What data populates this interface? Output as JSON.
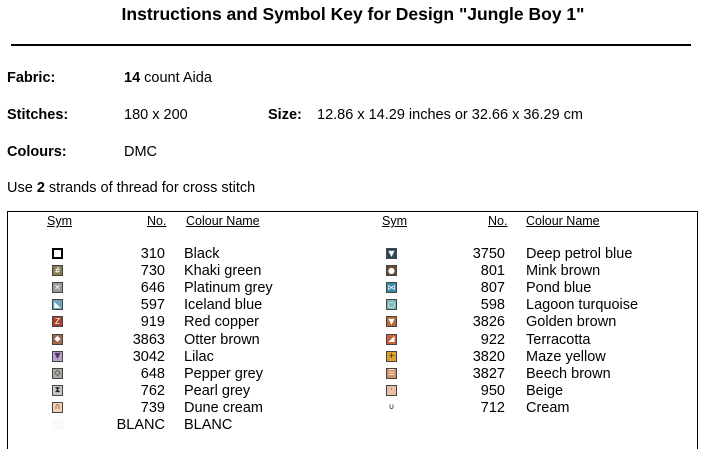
{
  "title": "Instructions and Symbol Key for Design \"Jungle Boy 1\"",
  "fabric": {
    "label": "Fabric:",
    "count": "14",
    "suffix": " count Aida"
  },
  "stitches": {
    "label": "Stitches:",
    "value": "180 x 200"
  },
  "size": {
    "label": "Size:",
    "value": "12.86 x 14.29 inches or 32.66 x 36.29 cm"
  },
  "colours": {
    "label": "Colours:",
    "value": "DMC"
  },
  "strands": {
    "prefix": "Use ",
    "count": "2",
    "suffix": " strands of thread for cross stitch"
  },
  "table": {
    "headers": {
      "sym": "Sym",
      "no": "No.",
      "name": "Colour Name"
    },
    "left": [
      {
        "glyph": "",
        "color": "#ffffff",
        "fg": "#000",
        "no": "310",
        "name": "Black"
      },
      {
        "glyph": "#",
        "color": "#8a7a55",
        "fg": "#fff",
        "no": "730",
        "name": "Khaki green"
      },
      {
        "glyph": "✕",
        "color": "#9a9a9a",
        "fg": "#fff",
        "no": "646",
        "name": "Platinum grey"
      },
      {
        "glyph": "◣",
        "color": "#6aa6b8",
        "fg": "#fff",
        "no": "597",
        "name": "Iceland blue"
      },
      {
        "glyph": "Z",
        "color": "#a4402a",
        "fg": "#fff",
        "no": "919",
        "name": "Red copper"
      },
      {
        "glyph": "◆",
        "color": "#a0694a",
        "fg": "#fff",
        "no": "3863",
        "name": "Otter brown"
      },
      {
        "glyph": "▼",
        "color": "#b8a0c8",
        "fg": "#4a3a60",
        "no": "3042",
        "name": "Lilac"
      },
      {
        "glyph": "◇",
        "color": "#a8a8a0",
        "fg": "#222",
        "no": "648",
        "name": "Pepper grey"
      },
      {
        "glyph": "⧗",
        "color": "#c8c8c8",
        "fg": "#222",
        "no": "762",
        "name": "Pearl grey"
      },
      {
        "glyph": "∩",
        "color": "#f2d2b0",
        "fg": "#6a4020",
        "no": "739",
        "name": "Dune cream"
      },
      {
        "glyph": "",
        "color": "#fafafa",
        "fg": "#000",
        "no": "BLANC",
        "name": "BLANC",
        "noborder": true
      }
    ],
    "right": [
      {
        "glyph": "▼",
        "color": "#2a4a5a",
        "fg": "#fff",
        "no": "3750",
        "name": "Deep petrol blue"
      },
      {
        "glyph": "●",
        "color": "#6a4a30",
        "fg": "#fff",
        "no": "801",
        "name": "Mink brown"
      },
      {
        "glyph": "⋈",
        "color": "#3a88a8",
        "fg": "#fff",
        "no": "807",
        "name": "Pond blue"
      },
      {
        "glyph": "○",
        "color": "#7ab8b8",
        "fg": "#fff",
        "no": "598",
        "name": "Lagoon turquoise"
      },
      {
        "glyph": "▼",
        "color": "#b86a30",
        "fg": "#fff",
        "no": "3826",
        "name": "Golden brown"
      },
      {
        "glyph": "◢",
        "color": "#c8603a",
        "fg": "#fff",
        "no": "922",
        "name": "Terracotta"
      },
      {
        "glyph": "+",
        "color": "#e0a030",
        "fg": "#222",
        "no": "3820",
        "name": "Maze yellow"
      },
      {
        "glyph": "☰",
        "color": "#d09060",
        "fg": "#fff",
        "no": "3827",
        "name": "Beech brown"
      },
      {
        "glyph": "·",
        "color": "#e8c0a8",
        "fg": "#6a3020",
        "no": "950",
        "name": "Beige"
      },
      {
        "glyph": "∪",
        "color": "#ffffff",
        "fg": "#000",
        "no": "712",
        "name": "Cream",
        "noborder": true
      }
    ]
  }
}
